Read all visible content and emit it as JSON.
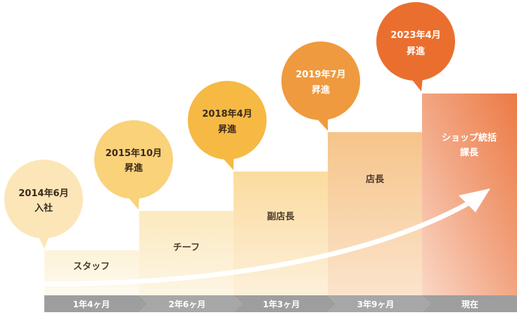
{
  "steps": [
    {
      "role": "スタッフ",
      "duration": "1年4ヶ月",
      "milestone_line1": "2014年6月",
      "milestone_line2": "入社"
    },
    {
      "role": "チーフ",
      "duration": "2年6ヶ月",
      "milestone_line1": "2015年10月",
      "milestone_line2": "昇進"
    },
    {
      "role": "副店長",
      "duration": "1年3ヶ月",
      "milestone_line1": "2018年4月",
      "milestone_line2": "昇進"
    },
    {
      "role": "店長",
      "duration": "3年9ヶ月",
      "milestone_line1": "2019年7月",
      "milestone_line2": "昇進"
    },
    {
      "role_line1": "ショップ統括",
      "role_line2": "課長",
      "duration": "現在",
      "milestone_line1": "2023年4月",
      "milestone_line2": "昇進"
    }
  ],
  "colors": {
    "bubble1": "#fce6b8",
    "bubble2": "#f9d27a",
    "bubble3": "#f6b944",
    "bubble4": "#ef9a3e",
    "bubble5": "#ea6f2e",
    "timeline_bar": "#9e9e9e",
    "arrow": "#ffffff"
  }
}
